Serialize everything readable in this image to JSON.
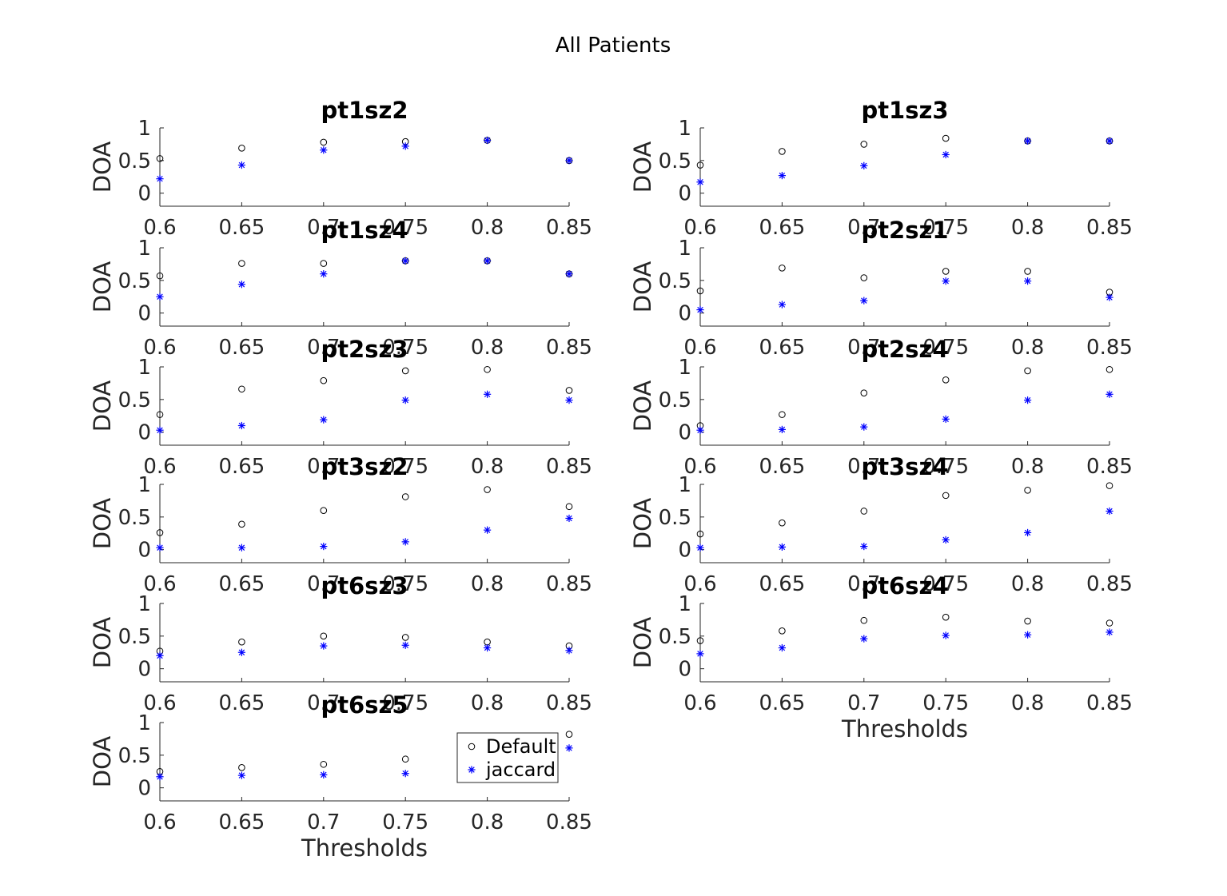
{
  "figure": {
    "title": "All Patients"
  },
  "colors": {
    "default_marker": "#000000",
    "jaccard_marker": "#0000ff",
    "axis": "#262626"
  },
  "legend": {
    "entries": [
      "Default",
      "jaccard"
    ],
    "placement": "inside-right of pt6sz5 panel"
  },
  "chart_data": [
    {
      "type": "scatter",
      "title": "pt1sz2",
      "xlabel": "",
      "ylabel": "DOA",
      "x": [
        0.6,
        0.65,
        0.7,
        0.75,
        0.8,
        0.85
      ],
      "xlim": [
        0.6,
        0.85
      ],
      "ylim": [
        -0.2,
        1
      ],
      "xticks": [
        "0.6",
        "0.65",
        "0.7",
        "0.75",
        "0.8",
        "0.85"
      ],
      "yticks": [
        "0",
        "0.5",
        "1"
      ],
      "series": [
        {
          "name": "Default",
          "marker": "circle",
          "values": [
            0.53,
            0.69,
            0.78,
            0.79,
            0.81,
            0.5
          ]
        },
        {
          "name": "jaccard",
          "marker": "star",
          "values": [
            0.22,
            0.43,
            0.66,
            0.72,
            0.81,
            0.5
          ]
        }
      ]
    },
    {
      "type": "scatter",
      "title": "pt1sz3",
      "xlabel": "",
      "ylabel": "DOA",
      "x": [
        0.6,
        0.65,
        0.7,
        0.75,
        0.8,
        0.85
      ],
      "xlim": [
        0.6,
        0.85
      ],
      "ylim": [
        -0.2,
        1
      ],
      "xticks": [
        "0.6",
        "0.65",
        "0.7",
        "0.75",
        "0.8",
        "0.85"
      ],
      "yticks": [
        "0",
        "0.5",
        "1"
      ],
      "series": [
        {
          "name": "Default",
          "marker": "circle",
          "values": [
            0.43,
            0.64,
            0.75,
            0.84,
            0.8,
            0.8
          ]
        },
        {
          "name": "jaccard",
          "marker": "star",
          "values": [
            0.17,
            0.27,
            0.42,
            0.59,
            0.8,
            0.8
          ]
        }
      ]
    },
    {
      "type": "scatter",
      "title": "pt1sz4",
      "xlabel": "",
      "ylabel": "DOA",
      "x": [
        0.6,
        0.65,
        0.7,
        0.75,
        0.8,
        0.85
      ],
      "xlim": [
        0.6,
        0.85
      ],
      "ylim": [
        -0.2,
        1
      ],
      "xticks": [
        "0.6",
        "0.65",
        "0.7",
        "0.75",
        "0.8",
        "0.85"
      ],
      "yticks": [
        "0",
        "0.5",
        "1"
      ],
      "series": [
        {
          "name": "Default",
          "marker": "circle",
          "values": [
            0.57,
            0.76,
            0.76,
            0.8,
            0.8,
            0.6
          ]
        },
        {
          "name": "jaccard",
          "marker": "star",
          "values": [
            0.25,
            0.44,
            0.6,
            0.8,
            0.8,
            0.6
          ]
        }
      ]
    },
    {
      "type": "scatter",
      "title": "pt2sz1",
      "xlabel": "",
      "ylabel": "DOA",
      "x": [
        0.6,
        0.65,
        0.7,
        0.75,
        0.8,
        0.85
      ],
      "xlim": [
        0.6,
        0.85
      ],
      "ylim": [
        -0.2,
        1
      ],
      "xticks": [
        "0.6",
        "0.65",
        "0.7",
        "0.75",
        "0.8",
        "0.85"
      ],
      "yticks": [
        "0",
        "0.5",
        "1"
      ],
      "series": [
        {
          "name": "Default",
          "marker": "circle",
          "values": [
            0.34,
            0.69,
            0.54,
            0.64,
            0.64,
            0.32
          ]
        },
        {
          "name": "jaccard",
          "marker": "star",
          "values": [
            0.05,
            0.13,
            0.19,
            0.49,
            0.49,
            0.24
          ]
        }
      ]
    },
    {
      "type": "scatter",
      "title": "pt2sz3",
      "xlabel": "",
      "ylabel": "DOA",
      "x": [
        0.6,
        0.65,
        0.7,
        0.75,
        0.8,
        0.85
      ],
      "xlim": [
        0.6,
        0.85
      ],
      "ylim": [
        -0.2,
        1
      ],
      "xticks": [
        "0.6",
        "0.65",
        "0.7",
        "0.75",
        "0.8",
        "0.85"
      ],
      "yticks": [
        "0",
        "0.5",
        "1"
      ],
      "series": [
        {
          "name": "Default",
          "marker": "circle",
          "values": [
            0.27,
            0.66,
            0.79,
            0.94,
            0.96,
            0.64
          ]
        },
        {
          "name": "jaccard",
          "marker": "star",
          "values": [
            0.03,
            0.1,
            0.19,
            0.49,
            0.58,
            0.49
          ]
        }
      ]
    },
    {
      "type": "scatter",
      "title": "pt2sz4",
      "xlabel": "",
      "ylabel": "DOA",
      "x": [
        0.6,
        0.65,
        0.7,
        0.75,
        0.8,
        0.85
      ],
      "xlim": [
        0.6,
        0.85
      ],
      "ylim": [
        -0.2,
        1
      ],
      "xticks": [
        "0.6",
        "0.65",
        "0.7",
        "0.75",
        "0.8",
        "0.85"
      ],
      "yticks": [
        "0",
        "0.5",
        "1"
      ],
      "series": [
        {
          "name": "Default",
          "marker": "circle",
          "values": [
            0.1,
            0.27,
            0.6,
            0.8,
            0.94,
            0.96
          ]
        },
        {
          "name": "jaccard",
          "marker": "star",
          "values": [
            0.03,
            0.04,
            0.08,
            0.2,
            0.49,
            0.58
          ]
        }
      ]
    },
    {
      "type": "scatter",
      "title": "pt3sz2",
      "xlabel": "",
      "ylabel": "DOA",
      "x": [
        0.6,
        0.65,
        0.7,
        0.75,
        0.8,
        0.85
      ],
      "xlim": [
        0.6,
        0.85
      ],
      "ylim": [
        -0.2,
        1
      ],
      "xticks": [
        "0.6",
        "0.65",
        "0.7",
        "0.75",
        "0.8",
        "0.85"
      ],
      "yticks": [
        "0",
        "0.5",
        "1"
      ],
      "series": [
        {
          "name": "Default",
          "marker": "circle",
          "values": [
            0.26,
            0.39,
            0.6,
            0.81,
            0.92,
            0.66
          ]
        },
        {
          "name": "jaccard",
          "marker": "star",
          "values": [
            0.03,
            0.03,
            0.05,
            0.12,
            0.3,
            0.48
          ]
        }
      ]
    },
    {
      "type": "scatter",
      "title": "pt3sz4",
      "xlabel": "",
      "ylabel": "DOA",
      "x": [
        0.6,
        0.65,
        0.7,
        0.75,
        0.8,
        0.85
      ],
      "xlim": [
        0.6,
        0.85
      ],
      "ylim": [
        -0.2,
        1
      ],
      "xticks": [
        "0.6",
        "0.65",
        "0.7",
        "0.75",
        "0.8",
        "0.85"
      ],
      "yticks": [
        "0",
        "0.5",
        "1"
      ],
      "series": [
        {
          "name": "Default",
          "marker": "circle",
          "values": [
            0.24,
            0.41,
            0.59,
            0.83,
            0.91,
            0.98
          ]
        },
        {
          "name": "jaccard",
          "marker": "star",
          "values": [
            0.03,
            0.04,
            0.05,
            0.15,
            0.26,
            0.59
          ]
        }
      ]
    },
    {
      "type": "scatter",
      "title": "pt6sz3",
      "xlabel": "",
      "ylabel": "DOA",
      "x": [
        0.6,
        0.65,
        0.7,
        0.75,
        0.8,
        0.85
      ],
      "xlim": [
        0.6,
        0.85
      ],
      "ylim": [
        -0.2,
        1
      ],
      "xticks": [
        "0.6",
        "0.65",
        "0.7",
        "0.75",
        "0.8",
        "0.85"
      ],
      "yticks": [
        "0",
        "0.5",
        "1"
      ],
      "series": [
        {
          "name": "Default",
          "marker": "circle",
          "values": [
            0.27,
            0.41,
            0.5,
            0.48,
            0.41,
            0.35
          ]
        },
        {
          "name": "jaccard",
          "marker": "star",
          "values": [
            0.2,
            0.25,
            0.35,
            0.36,
            0.32,
            0.28
          ]
        }
      ]
    },
    {
      "type": "scatter",
      "title": "pt6sz4",
      "xlabel": "Thresholds",
      "ylabel": "DOA",
      "x": [
        0.6,
        0.65,
        0.7,
        0.75,
        0.8,
        0.85
      ],
      "xlim": [
        0.6,
        0.85
      ],
      "ylim": [
        -0.2,
        1
      ],
      "xticks": [
        "0.6",
        "0.65",
        "0.7",
        "0.75",
        "0.8",
        "0.85"
      ],
      "yticks": [
        "0",
        "0.5",
        "1"
      ],
      "series": [
        {
          "name": "Default",
          "marker": "circle",
          "values": [
            0.43,
            0.58,
            0.74,
            0.79,
            0.73,
            0.7
          ]
        },
        {
          "name": "jaccard",
          "marker": "star",
          "values": [
            0.23,
            0.32,
            0.46,
            0.51,
            0.52,
            0.56
          ]
        }
      ]
    },
    {
      "type": "scatter",
      "title": "pt6sz5",
      "xlabel": "Thresholds",
      "ylabel": "DOA",
      "x": [
        0.6,
        0.65,
        0.7,
        0.75,
        0.8,
        0.85
      ],
      "xlim": [
        0.6,
        0.85
      ],
      "ylim": [
        -0.2,
        1
      ],
      "xticks": [
        "0.6",
        "0.65",
        "0.7",
        "0.75",
        "0.8",
        "0.85"
      ],
      "yticks": [
        "0",
        "0.5",
        "1"
      ],
      "series": [
        {
          "name": "Default",
          "marker": "circle",
          "values": [
            0.25,
            0.31,
            0.36,
            0.44,
            null,
            0.82
          ]
        },
        {
          "name": "jaccard",
          "marker": "star",
          "values": [
            0.17,
            0.19,
            0.2,
            0.22,
            null,
            0.61
          ]
        }
      ]
    }
  ]
}
